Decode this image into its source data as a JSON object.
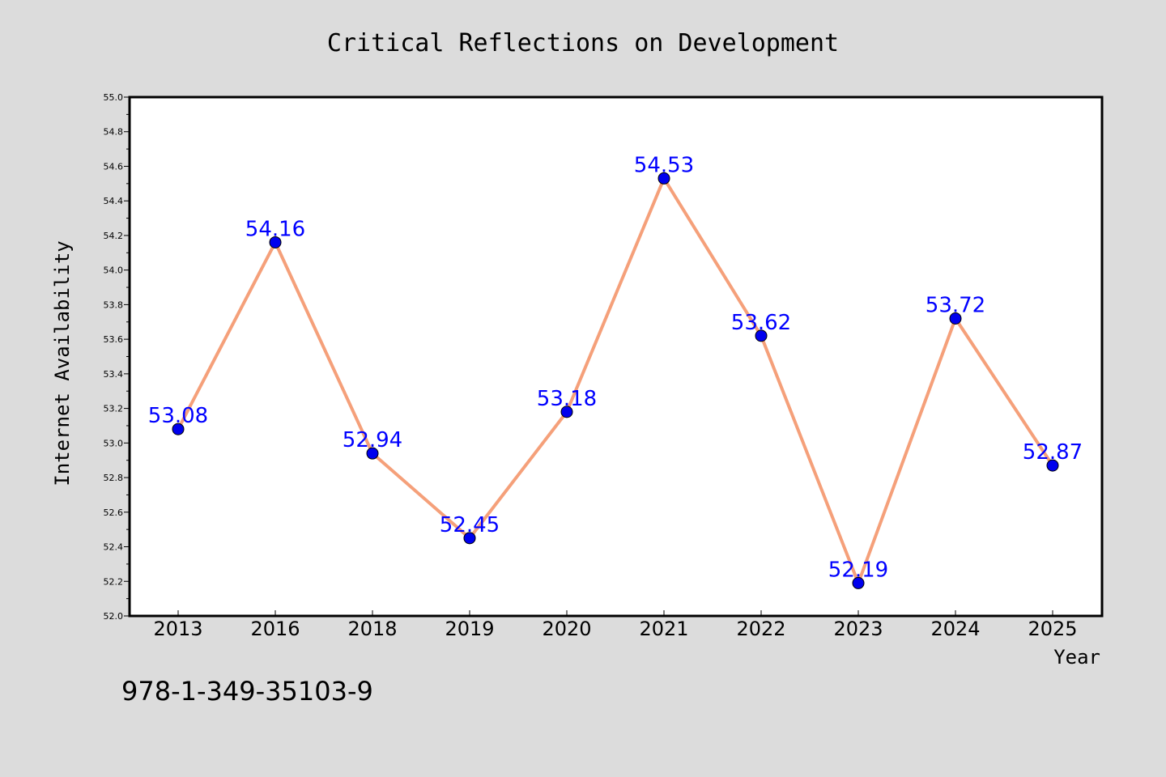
{
  "chart_data": {
    "type": "line",
    "title": "Critical Reflections on Development",
    "xlabel": "Year",
    "ylabel": "Internet Availability",
    "categories": [
      "2013",
      "2016",
      "2018",
      "2019",
      "2020",
      "2021",
      "2022",
      "2023",
      "2024",
      "2025"
    ],
    "series": [
      {
        "values": [
          53.08,
          54.16,
          52.94,
          52.45,
          53.18,
          54.53,
          53.62,
          52.19,
          53.72,
          52.87
        ],
        "data_labels": [
          "53.08",
          "54.16",
          "52.94",
          "52.45",
          "53.18",
          "54.53",
          "53.62",
          "52.19",
          "53.72",
          "52.87"
        ],
        "line_color": "#f5a07a",
        "marker_color": "#0000ee"
      }
    ],
    "ylim": [
      52.0,
      55.0
    ],
    "yticks": [
      "52.0",
      "52.2",
      "52.4",
      "52.6",
      "52.8",
      "53.0",
      "53.2",
      "53.4",
      "53.6",
      "53.8",
      "54.0",
      "54.2",
      "54.4",
      "54.6",
      "54.8",
      "55.0"
    ],
    "grid": false,
    "legend": "none",
    "data_label_color": "#0000ff"
  },
  "footer_text": "978-1-349-35103-9",
  "colors": {
    "background": "#dcdcdc",
    "plot_background": "#ffffff",
    "axis": "#000000",
    "text": "#000000"
  }
}
